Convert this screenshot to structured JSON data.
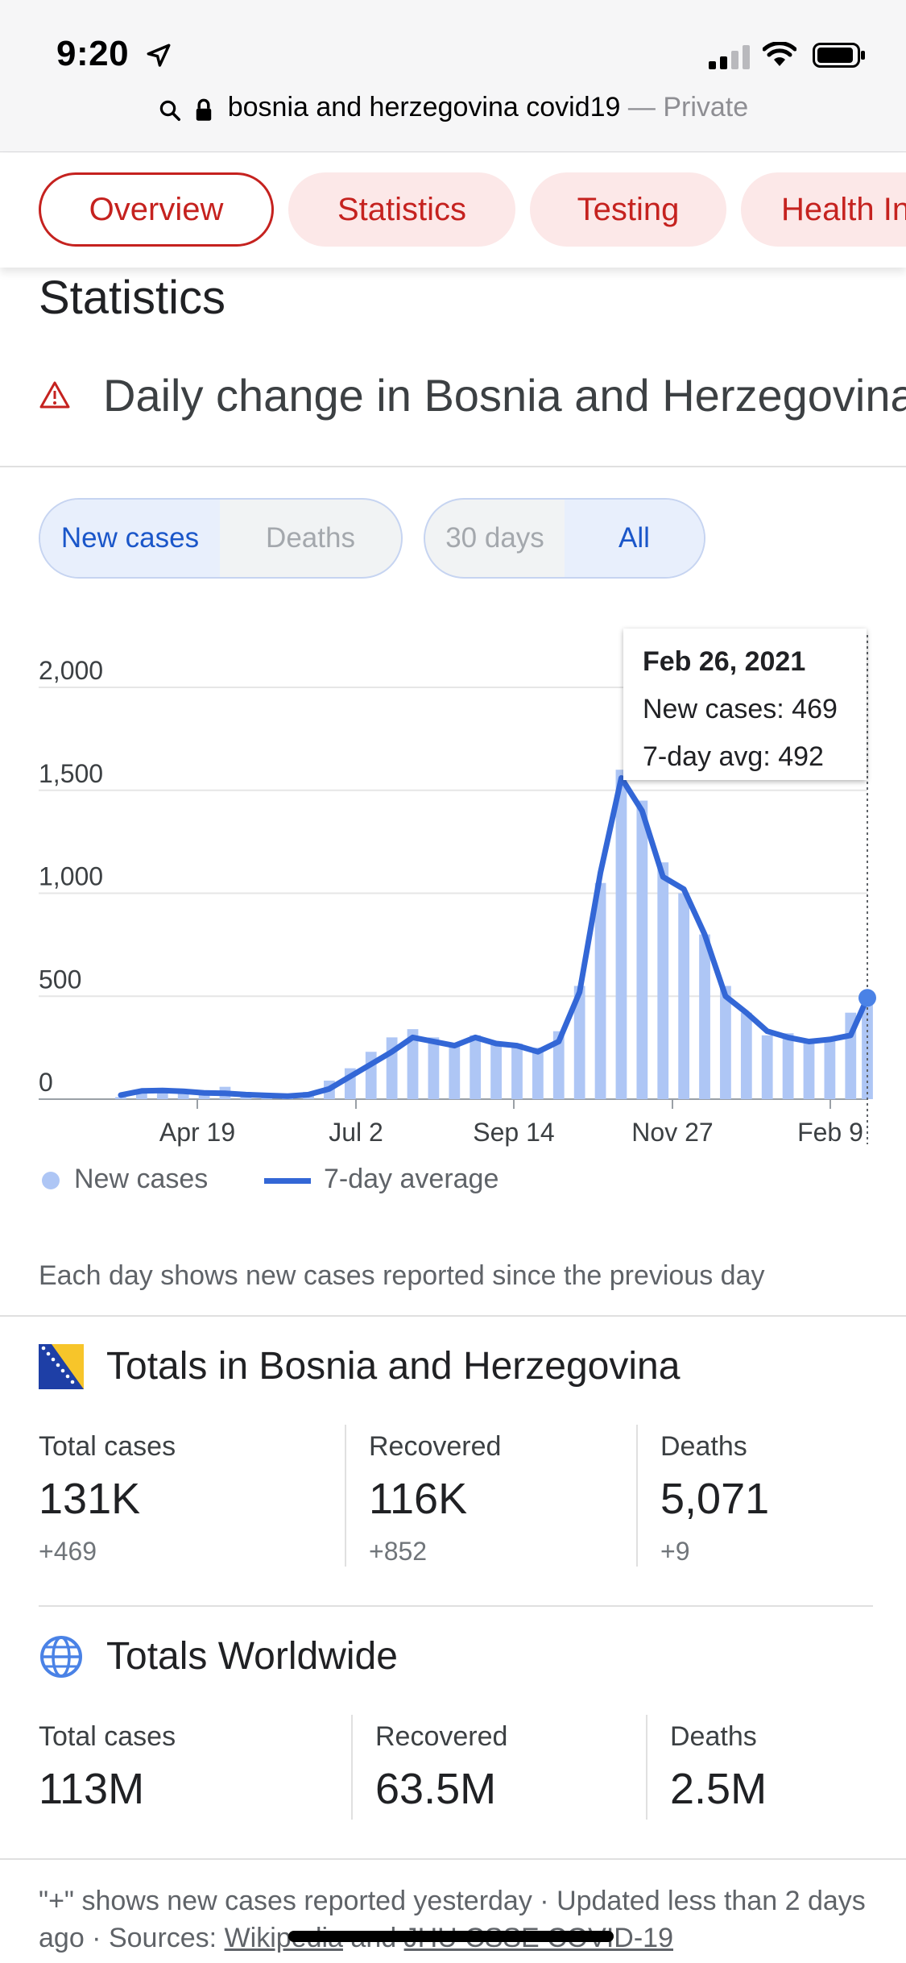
{
  "status_bar": {
    "time": "9:20"
  },
  "browser": {
    "query": "bosnia and herzegovina covid19",
    "separator": " — ",
    "mode": "Private"
  },
  "tabs": [
    {
      "label": "Overview",
      "active": true
    },
    {
      "label": "Statistics"
    },
    {
      "label": "Testing"
    },
    {
      "label": "Health Info"
    }
  ],
  "section_title": "Statistics",
  "chart_heading": "Daily change in Bosnia and Herzegovina",
  "toggles": {
    "metric": {
      "options": [
        "New cases",
        "Deaths"
      ],
      "selected": "New cases"
    },
    "range": {
      "options": [
        "30 days",
        "All"
      ],
      "selected": "All"
    }
  },
  "tooltip": {
    "date": "Feb 26, 2021",
    "new_cases": "New cases: 469",
    "avg": "7-day avg: 492"
  },
  "legend": {
    "bars": "New cases",
    "line": "7-day average"
  },
  "chart_data": {
    "type": "bar",
    "xlabel": "",
    "ylabel": "",
    "ylim": [
      0,
      2000
    ],
    "y_ticks": [
      "0",
      "500",
      "1,000",
      "1,500",
      "2,000"
    ],
    "x_ticks": [
      "Apr 19",
      "Jul 2",
      "Sep 14",
      "Nov 27",
      "Feb 9"
    ],
    "x_range": [
      "2020-03-05",
      "2021-02-26"
    ],
    "series": [
      {
        "name": "New cases",
        "kind": "bar",
        "color": "#aec6f5",
        "x": [
          "2020-03-05",
          "2020-03-15",
          "2020-03-25",
          "2020-04-04",
          "2020-04-14",
          "2020-04-24",
          "2020-05-04",
          "2020-05-14",
          "2020-05-24",
          "2020-06-03",
          "2020-06-13",
          "2020-06-23",
          "2020-07-03",
          "2020-07-13",
          "2020-07-23",
          "2020-08-02",
          "2020-08-12",
          "2020-08-22",
          "2020-09-01",
          "2020-09-11",
          "2020-09-21",
          "2020-10-01",
          "2020-10-11",
          "2020-10-21",
          "2020-10-31",
          "2020-11-10",
          "2020-11-20",
          "2020-11-30",
          "2020-12-10",
          "2020-12-20",
          "2020-12-30",
          "2021-01-09",
          "2021-01-19",
          "2021-01-29",
          "2021-02-08",
          "2021-02-18",
          "2021-02-26"
        ],
        "values": [
          10,
          45,
          55,
          48,
          40,
          60,
          35,
          25,
          20,
          35,
          90,
          150,
          230,
          300,
          340,
          300,
          270,
          310,
          280,
          270,
          250,
          330,
          550,
          1050,
          1600,
          1450,
          1150,
          1000,
          800,
          550,
          420,
          310,
          320,
          290,
          300,
          420,
          469
        ]
      },
      {
        "name": "7-day average",
        "kind": "line",
        "color": "#3367d6",
        "x": [
          "2020-03-05",
          "2020-03-15",
          "2020-03-25",
          "2020-04-04",
          "2020-04-14",
          "2020-04-24",
          "2020-05-04",
          "2020-05-14",
          "2020-05-24",
          "2020-06-03",
          "2020-06-13",
          "2020-06-23",
          "2020-07-03",
          "2020-07-13",
          "2020-07-23",
          "2020-08-02",
          "2020-08-12",
          "2020-08-22",
          "2020-09-01",
          "2020-09-11",
          "2020-09-21",
          "2020-10-01",
          "2020-10-11",
          "2020-10-21",
          "2020-10-31",
          "2020-11-10",
          "2020-11-20",
          "2020-11-30",
          "2020-12-10",
          "2020-12-20",
          "2020-12-30",
          "2021-01-09",
          "2021-01-19",
          "2021-01-29",
          "2021-02-08",
          "2021-02-18",
          "2021-02-26"
        ],
        "values": [
          20,
          40,
          42,
          38,
          30,
          28,
          22,
          18,
          15,
          22,
          50,
          110,
          170,
          230,
          300,
          280,
          260,
          300,
          270,
          260,
          230,
          280,
          520,
          1100,
          1560,
          1400,
          1080,
          1020,
          800,
          500,
          420,
          330,
          300,
          280,
          290,
          310,
          492
        ]
      }
    ]
  },
  "chart_note": "Each day shows new cases reported since the previous day",
  "country_totals": {
    "title": "Totals in Bosnia and Herzegovina",
    "total_cases": {
      "label": "Total cases",
      "value": "131K",
      "delta": "+469"
    },
    "recovered": {
      "label": "Recovered",
      "value": "116K",
      "delta": "+852"
    },
    "deaths": {
      "label": "Deaths",
      "value": "5,071",
      "delta": "+9"
    }
  },
  "world_totals": {
    "title": "Totals Worldwide",
    "total_cases": {
      "label": "Total cases",
      "value": "113M"
    },
    "recovered": {
      "label": "Recovered",
      "value": "63.5M"
    },
    "deaths": {
      "label": "Deaths",
      "value": "2.5M"
    }
  },
  "footer": {
    "line1": "\"+\" shows new cases reported yesterday",
    "dot": " · ",
    "updated": "Updated less than 2 days ago",
    "sources_label": "Sources: ",
    "source1": "Wikipedia",
    "and": " and ",
    "source2": "JHU CSSE COVID-19"
  },
  "colors": {
    "accent_red": "#c5221f",
    "chart_bar": "#aec6f5",
    "chart_line": "#3367d6"
  }
}
